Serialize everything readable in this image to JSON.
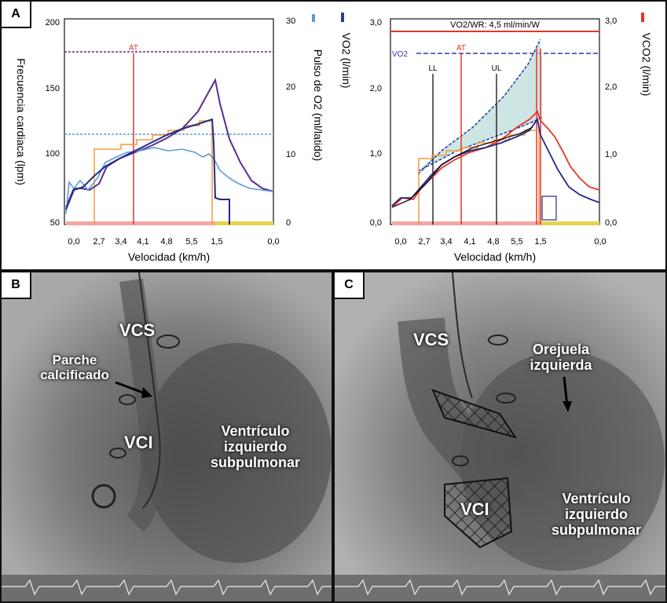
{
  "panels": {
    "a": {
      "label": "A"
    },
    "b": {
      "label": "B"
    },
    "c": {
      "label": "C"
    }
  },
  "chart_data": [
    {
      "type": "line",
      "xlabel": "Velocidad (km/h)",
      "ylabel": "Frecuencia cardiaca (lpm)",
      "y2label": "Pulso de O2 (ml/latido)",
      "x_ticks": [
        "0,0",
        "2,7",
        "3,4",
        "4,1",
        "4,8",
        "5,5",
        "1,5",
        "0,0"
      ],
      "y_ticks": [
        "50",
        "100",
        "150",
        "200"
      ],
      "y2_ticks": [
        "0",
        "10",
        "20",
        "30"
      ],
      "ylim": [
        50,
        200
      ],
      "y2lim": [
        0,
        30
      ],
      "annotations": [
        "AT"
      ],
      "series": [
        {
          "color": "#5a2d91",
          "axis": "left",
          "values": [
            62,
            70,
            80,
            78,
            82,
            90,
            100,
            106,
            115,
            125,
            150,
            155,
            125,
            95,
            80,
            72,
            68
          ]
        },
        {
          "color": "#5b9bd5",
          "axis": "right",
          "values": [
            3,
            5,
            6,
            7,
            9,
            10,
            10.5,
            11,
            11,
            10.5,
            10,
            10,
            8,
            6,
            5,
            4,
            4
          ]
        },
        {
          "color": "#1f2a8a",
          "axis": "left",
          "values": [
            60,
            75,
            82,
            88,
            92,
            98,
            104,
            110,
            117,
            122,
            125,
            125,
            80,
            60,
            55,
            55,
            55
          ]
        },
        {
          "color": "#f39c34",
          "axis": "right",
          "values": [
            0,
            0,
            0,
            9,
            9,
            10,
            11,
            12,
            13,
            14,
            15,
            15,
            15,
            0,
            0,
            0,
            0
          ]
        }
      ]
    },
    {
      "type": "line",
      "xlabel": "Velocidad (km/h)",
      "ylabel": "VO2 (l/min)",
      "y2label": "VCO2 (l/min)",
      "x_ticks": [
        "0,0",
        "2,7",
        "3,4",
        "4,1",
        "4,8",
        "5,5",
        "1,5",
        "0,0"
      ],
      "y_ticks": [
        "0,0",
        "1,0",
        "2,0",
        "3,0"
      ],
      "y2_ticks": [
        "0,0",
        "1,0",
        "2,0",
        "3,0"
      ],
      "ylim": [
        0,
        3
      ],
      "y2lim": [
        0,
        3
      ],
      "title": "VO2/WR: 4,5 ml/min/W",
      "annotations": [
        "VO2",
        "LL",
        "AT",
        "UL"
      ],
      "series": [
        {
          "color": "#1f2a8a",
          "axis": "left",
          "values": [
            0.3,
            0.35,
            0.6,
            0.75,
            0.85,
            0.95,
            1.0,
            1.05,
            1.15,
            1.25,
            1.3,
            1.55,
            0.9,
            0.6,
            0.4,
            0.3
          ]
        },
        {
          "color": "#e8322b",
          "axis": "right",
          "values": [
            0.25,
            0.3,
            0.55,
            0.72,
            0.82,
            0.92,
            1.0,
            1.1,
            1.25,
            1.4,
            1.5,
            1.75,
            1.4,
            0.9,
            0.55,
            0.45
          ]
        },
        {
          "color": "#2b3aa8",
          "axis": "left",
          "values": [
            0.2,
            0.2,
            0.9,
            1.05,
            1.2,
            1.45,
            1.7,
            1.95,
            2.2,
            2.45,
            2.6,
            2.7
          ]
        },
        {
          "color": "#f39c34",
          "axis": "left",
          "values": [
            0,
            0,
            0.9,
            0.95,
            1.0,
            1.05,
            1.1,
            1.15,
            1.2,
            1.25,
            1.3,
            1.35
          ]
        }
      ]
    }
  ],
  "xray_b": {
    "label_vcs": "VCS",
    "label_parche": "Parche calcificado",
    "label_vci": "VCI",
    "label_ventriculo": "Ventrículo izquierdo subpulmonar"
  },
  "xray_c": {
    "label_vcs": "VCS",
    "label_orejuela": "Orejuela izquierda",
    "label_vci": "VCI",
    "label_ventriculo": "Ventrículo izquierdo subpulmonar"
  }
}
